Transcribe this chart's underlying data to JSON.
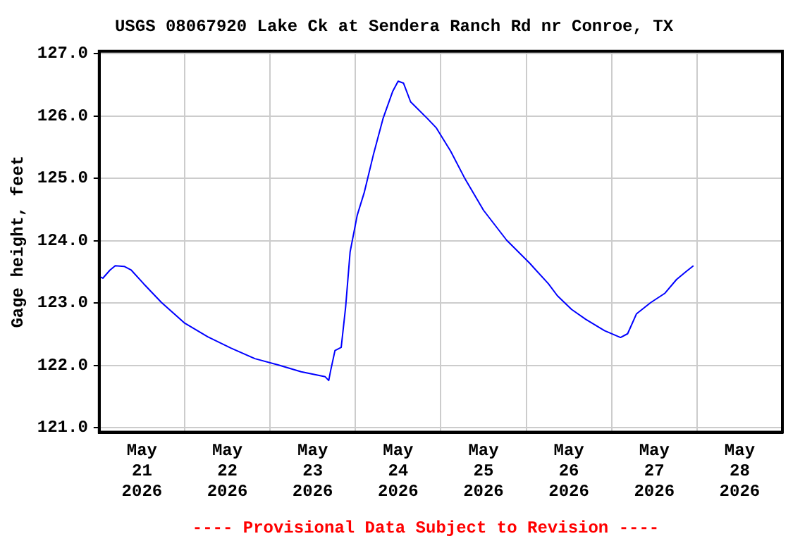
{
  "chart_data": {
    "type": "line",
    "title": "USGS 08067920 Lake Ck at Sendera Ranch Rd nr Conroe, TX",
    "ylabel": "Gage height, feet",
    "annotations": [
      "---- Provisional Data Subject to Revision ----"
    ],
    "x": [
      "2026-05-20T12:00",
      "2026-05-20T13:00",
      "2026-05-20T15:00",
      "2026-05-20T16:30",
      "2026-05-20T19:00",
      "2026-05-20T21:00",
      "2026-05-21T00:30",
      "2026-05-21T05:30",
      "2026-05-21T12:00",
      "2026-05-21T18:30",
      "2026-05-22T01:00",
      "2026-05-22T07:45",
      "2026-05-22T14:15",
      "2026-05-22T20:45",
      "2026-05-23T03:30",
      "2026-05-23T04:30",
      "2026-05-23T05:00",
      "2026-05-23T06:15",
      "2026-05-23T08:00",
      "2026-05-23T09:15",
      "2026-05-23T10:30",
      "2026-05-23T12:30",
      "2026-05-23T14:30",
      "2026-05-23T17:00",
      "2026-05-23T19:45",
      "2026-05-23T22:30",
      "2026-05-24T00:00",
      "2026-05-24T01:30",
      "2026-05-24T03:30",
      "2026-05-24T08:15",
      "2026-05-24T10:45",
      "2026-05-24T14:45",
      "2026-05-24T18:45",
      "2026-05-25T00:00",
      "2026-05-25T06:30",
      "2026-05-25T13:00",
      "2026-05-25T18:15",
      "2026-05-25T20:45",
      "2026-05-26T00:45",
      "2026-05-26T04:45",
      "2026-05-26T10:00",
      "2026-05-26T13:15",
      "2026-05-26T14:30",
      "2026-05-26T16:30",
      "2026-05-26T19:00",
      "2026-05-26T23:00",
      "2026-05-27T03:00",
      "2026-05-27T06:15",
      "2026-05-27T09:00",
      "2026-05-27T11:00"
    ],
    "series": [
      {
        "color": "#0000ff",
        "values": [
          123.43,
          123.4,
          123.53,
          123.6,
          123.59,
          123.53,
          123.31,
          123.01,
          122.68,
          122.46,
          122.28,
          122.11,
          122.01,
          121.9,
          121.82,
          121.76,
          121.91,
          122.24,
          122.29,
          122.94,
          123.82,
          124.41,
          124.78,
          125.37,
          125.96,
          126.4,
          126.56,
          126.53,
          126.23,
          125.96,
          125.81,
          125.44,
          125.0,
          124.49,
          124.01,
          123.64,
          123.31,
          123.12,
          122.9,
          122.74,
          122.56,
          122.48,
          122.45,
          122.51,
          122.83,
          123.01,
          123.16,
          123.38,
          123.51,
          123.6
        ]
      }
    ],
    "xlim": [
      "2026-05-20T12:00",
      "2026-05-28T12:00"
    ],
    "xticks": [
      {
        "value": "2026-05-21",
        "label": "May\n21\n2026"
      },
      {
        "value": "2026-05-21T12:00",
        "label": null
      },
      {
        "value": "2026-05-22",
        "label": "May\n22\n2026"
      },
      {
        "value": "2026-05-22T12:00",
        "label": null
      },
      {
        "value": "2026-05-23",
        "label": "May\n23\n2026"
      },
      {
        "value": "2026-05-23T12:00",
        "label": null
      },
      {
        "value": "2026-05-24",
        "label": "May\n24\n2026"
      },
      {
        "value": "2026-05-24T12:00",
        "label": null
      },
      {
        "value": "2026-05-25",
        "label": "May\n25\n2026"
      },
      {
        "value": "2026-05-25T12:00",
        "label": null
      },
      {
        "value": "2026-05-26",
        "label": "May\n26\n2026"
      },
      {
        "value": "2026-05-26T12:00",
        "label": null
      },
      {
        "value": "2026-05-27",
        "label": "May\n27\n2026"
      },
      {
        "value": "2026-05-27T12:00",
        "label": null
      },
      {
        "value": "2026-05-28",
        "label": "May\n28\n2026"
      }
    ],
    "ylim": [
      120.93,
      127.04
    ],
    "yticks": [
      {
        "value": 121,
        "label": "121.0"
      },
      {
        "value": 122,
        "label": "122.0"
      },
      {
        "value": 123,
        "label": "123.0"
      },
      {
        "value": 124,
        "label": "124.0"
      },
      {
        "value": 125,
        "label": "125.0"
      },
      {
        "value": 126,
        "label": "126.0"
      },
      {
        "value": 127,
        "label": "127.0"
      }
    ],
    "grid": true,
    "marker": "none",
    "line_style": "solid"
  }
}
